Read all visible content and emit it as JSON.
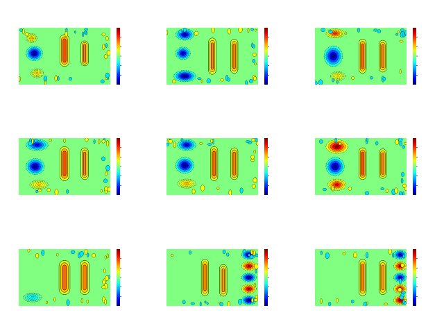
{
  "figure": {
    "background": "#ffffff",
    "field_color": "#80ff80",
    "contour_color": "#000000",
    "colormap": "jet"
  },
  "chart_data": [
    {
      "type": "heatmap",
      "row": 1,
      "col": 1,
      "colorbar": true,
      "features": [
        {
          "kind": "blob",
          "sign": "neg",
          "strength": 1.0,
          "x": 0.17,
          "y": 0.45,
          "rx": 0.09,
          "ry": 0.13
        },
        {
          "kind": "blob",
          "sign": "pos",
          "strength": 0.4,
          "x": 0.14,
          "y": 0.18,
          "rx": 0.06,
          "ry": 0.08
        },
        {
          "kind": "blob",
          "sign": "pos",
          "strength": 0.35,
          "x": 0.2,
          "y": 0.8,
          "rx": 0.07,
          "ry": 0.08
        },
        {
          "kind": "pill",
          "sign": "pos",
          "strength": 0.6,
          "x": 0.5,
          "y": 0.4,
          "rx": 0.05,
          "ry": 0.28
        },
        {
          "kind": "pill",
          "sign": "pos",
          "strength": 0.5,
          "x": 0.72,
          "y": 0.45,
          "rx": 0.04,
          "ry": 0.22
        }
      ]
    },
    {
      "type": "heatmap",
      "row": 1,
      "col": 2,
      "colorbar": true,
      "features": [
        {
          "kind": "blob",
          "sign": "neg",
          "strength": 0.9,
          "x": 0.2,
          "y": 0.12,
          "rx": 0.1,
          "ry": 0.1
        },
        {
          "kind": "blob",
          "sign": "neg",
          "strength": 0.9,
          "x": 0.18,
          "y": 0.45,
          "rx": 0.08,
          "ry": 0.11
        },
        {
          "kind": "blob",
          "sign": "neg",
          "strength": 1.0,
          "x": 0.2,
          "y": 0.85,
          "rx": 0.12,
          "ry": 0.1
        },
        {
          "kind": "pill",
          "sign": "pos",
          "strength": 0.5,
          "x": 0.5,
          "y": 0.5,
          "rx": 0.04,
          "ry": 0.32
        },
        {
          "kind": "pill",
          "sign": "pos",
          "strength": 0.5,
          "x": 0.74,
          "y": 0.5,
          "rx": 0.04,
          "ry": 0.3
        }
      ]
    },
    {
      "type": "heatmap",
      "row": 1,
      "col": 3,
      "colorbar": true,
      "features": [
        {
          "kind": "blob",
          "sign": "pos",
          "strength": 0.7,
          "x": 0.22,
          "y": 0.1,
          "rx": 0.1,
          "ry": 0.08
        },
        {
          "kind": "blob",
          "sign": "neg",
          "strength": 1.0,
          "x": 0.2,
          "y": 0.5,
          "rx": 0.1,
          "ry": 0.18
        },
        {
          "kind": "blob",
          "sign": "pos",
          "strength": 0.3,
          "x": 0.25,
          "y": 0.85,
          "rx": 0.08,
          "ry": 0.08
        },
        {
          "kind": "pill",
          "sign": "pos",
          "strength": 0.55,
          "x": 0.52,
          "y": 0.5,
          "rx": 0.04,
          "ry": 0.3
        },
        {
          "kind": "pill",
          "sign": "pos",
          "strength": 0.5,
          "x": 0.74,
          "y": 0.5,
          "rx": 0.04,
          "ry": 0.28
        }
      ]
    },
    {
      "type": "heatmap",
      "row": 2,
      "col": 1,
      "colorbar": true,
      "features": [
        {
          "kind": "blob",
          "sign": "neg",
          "strength": 0.8,
          "x": 0.2,
          "y": 0.12,
          "rx": 0.12,
          "ry": 0.1
        },
        {
          "kind": "blob",
          "sign": "neg",
          "strength": 1.0,
          "x": 0.18,
          "y": 0.5,
          "rx": 0.1,
          "ry": 0.14
        },
        {
          "kind": "blob",
          "sign": "pos",
          "strength": 0.35,
          "x": 0.22,
          "y": 0.82,
          "rx": 0.1,
          "ry": 0.08
        },
        {
          "kind": "pill",
          "sign": "pos",
          "strength": 0.6,
          "x": 0.5,
          "y": 0.45,
          "rx": 0.05,
          "ry": 0.3
        },
        {
          "kind": "pill",
          "sign": "pos",
          "strength": 0.5,
          "x": 0.72,
          "y": 0.45,
          "rx": 0.04,
          "ry": 0.28
        }
      ]
    },
    {
      "type": "heatmap",
      "row": 2,
      "col": 2,
      "colorbar": true,
      "features": [
        {
          "kind": "blob",
          "sign": "neg",
          "strength": 0.85,
          "x": 0.22,
          "y": 0.12,
          "rx": 0.1,
          "ry": 0.1
        },
        {
          "kind": "blob",
          "sign": "neg",
          "strength": 1.0,
          "x": 0.2,
          "y": 0.48,
          "rx": 0.1,
          "ry": 0.14
        },
        {
          "kind": "blob",
          "sign": "pos",
          "strength": 0.4,
          "x": 0.22,
          "y": 0.8,
          "rx": 0.1,
          "ry": 0.08
        },
        {
          "kind": "pill",
          "sign": "pos",
          "strength": 0.55,
          "x": 0.52,
          "y": 0.45,
          "rx": 0.04,
          "ry": 0.3
        },
        {
          "kind": "pill",
          "sign": "pos",
          "strength": 0.5,
          "x": 0.74,
          "y": 0.45,
          "rx": 0.04,
          "ry": 0.28
        }
      ]
    },
    {
      "type": "heatmap",
      "row": 2,
      "col": 3,
      "colorbar": true,
      "features": [
        {
          "kind": "blob",
          "sign": "pos",
          "strength": 1.0,
          "x": 0.24,
          "y": 0.15,
          "rx": 0.12,
          "ry": 0.12
        },
        {
          "kind": "blob",
          "sign": "neg",
          "strength": 1.0,
          "x": 0.22,
          "y": 0.5,
          "rx": 0.1,
          "ry": 0.16
        },
        {
          "kind": "blob",
          "sign": "pos",
          "strength": 0.8,
          "x": 0.24,
          "y": 0.82,
          "rx": 0.1,
          "ry": 0.1
        },
        {
          "kind": "pill",
          "sign": "pos",
          "strength": 0.6,
          "x": 0.52,
          "y": 0.45,
          "rx": 0.04,
          "ry": 0.28
        },
        {
          "kind": "pill",
          "sign": "pos",
          "strength": 0.5,
          "x": 0.74,
          "y": 0.45,
          "rx": 0.04,
          "ry": 0.26
        }
      ]
    },
    {
      "type": "heatmap",
      "row": 3,
      "col": 1,
      "colorbar": true,
      "features": [
        {
          "kind": "pill",
          "sign": "pos",
          "strength": 0.55,
          "x": 0.5,
          "y": 0.5,
          "rx": 0.06,
          "ry": 0.3
        },
        {
          "kind": "pill",
          "sign": "pos",
          "strength": 0.5,
          "x": 0.72,
          "y": 0.5,
          "rx": 0.05,
          "ry": 0.3
        },
        {
          "kind": "blob",
          "sign": "neg",
          "strength": 0.3,
          "x": 0.15,
          "y": 0.85,
          "rx": 0.1,
          "ry": 0.08
        }
      ]
    },
    {
      "type": "heatmap",
      "row": 3,
      "col": 2,
      "colorbar": true,
      "features": [
        {
          "kind": "pill",
          "sign": "pos",
          "strength": 0.5,
          "x": 0.42,
          "y": 0.5,
          "rx": 0.04,
          "ry": 0.32
        },
        {
          "kind": "pill",
          "sign": "pos",
          "strength": 0.45,
          "x": 0.62,
          "y": 0.55,
          "rx": 0.04,
          "ry": 0.28
        },
        {
          "kind": "blob",
          "sign": "neg",
          "strength": 1.0,
          "x": 0.9,
          "y": 0.1,
          "rx": 0.08,
          "ry": 0.08
        },
        {
          "kind": "blob",
          "sign": "pos",
          "strength": 0.9,
          "x": 0.9,
          "y": 0.3,
          "rx": 0.08,
          "ry": 0.08
        },
        {
          "kind": "blob",
          "sign": "neg",
          "strength": 1.0,
          "x": 0.9,
          "y": 0.5,
          "rx": 0.08,
          "ry": 0.08
        },
        {
          "kind": "blob",
          "sign": "pos",
          "strength": 0.9,
          "x": 0.9,
          "y": 0.7,
          "rx": 0.08,
          "ry": 0.08
        },
        {
          "kind": "blob",
          "sign": "neg",
          "strength": 1.0,
          "x": 0.9,
          "y": 0.9,
          "rx": 0.08,
          "ry": 0.08
        }
      ]
    },
    {
      "type": "heatmap",
      "row": 3,
      "col": 3,
      "colorbar": true,
      "features": [
        {
          "kind": "pill",
          "sign": "pos",
          "strength": 0.5,
          "x": 0.52,
          "y": 0.5,
          "rx": 0.04,
          "ry": 0.32
        },
        {
          "kind": "pill",
          "sign": "pos",
          "strength": 0.45,
          "x": 0.74,
          "y": 0.5,
          "rx": 0.04,
          "ry": 0.3
        },
        {
          "kind": "blob",
          "sign": "neg",
          "strength": 0.9,
          "x": 0.93,
          "y": 0.1,
          "rx": 0.07,
          "ry": 0.08
        },
        {
          "kind": "blob",
          "sign": "pos",
          "strength": 0.9,
          "x": 0.93,
          "y": 0.3,
          "rx": 0.07,
          "ry": 0.08
        },
        {
          "kind": "blob",
          "sign": "neg",
          "strength": 0.9,
          "x": 0.93,
          "y": 0.5,
          "rx": 0.07,
          "ry": 0.08
        },
        {
          "kind": "blob",
          "sign": "pos",
          "strength": 0.9,
          "x": 0.93,
          "y": 0.7,
          "rx": 0.07,
          "ry": 0.08
        },
        {
          "kind": "blob",
          "sign": "pos",
          "strength": 1.0,
          "x": 0.93,
          "y": 0.9,
          "rx": 0.07,
          "ry": 0.08
        }
      ]
    }
  ]
}
